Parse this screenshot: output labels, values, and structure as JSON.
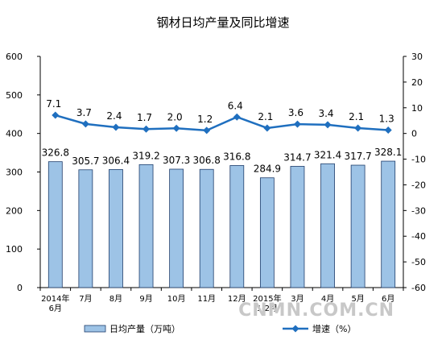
{
  "chart_data": {
    "type": "bar",
    "title": "钢材日均产量及同比增速",
    "categories": [
      "2014年|6月",
      "7月",
      "8月",
      "9月",
      "10月",
      "11月",
      "12月",
      "2015年|1-2月",
      "3月",
      "4月",
      "5月",
      "6月"
    ],
    "series": [
      {
        "name": "日均产量（万吨）",
        "type": "bar",
        "axis": "left",
        "color": "#9dc3e6",
        "values": [
          326.8,
          305.7,
          306.4,
          319.2,
          307.3,
          306.8,
          316.8,
          284.9,
          314.7,
          321.4,
          317.7,
          328.1
        ],
        "labels": [
          "326.8",
          "305.7",
          "306.4",
          "319.2",
          "307.3",
          "306.8",
          "316.8",
          "284.9",
          "314.7",
          "321.4",
          "317.7",
          "328.1"
        ]
      },
      {
        "name": "增速（%）",
        "type": "line",
        "axis": "right",
        "color": "#1f6fbf",
        "values": [
          7.1,
          3.7,
          2.4,
          1.7,
          2.0,
          1.2,
          6.4,
          2.1,
          3.6,
          3.4,
          2.1,
          1.3
        ],
        "labels": [
          "7.1",
          "3.7",
          "2.4",
          "1.7",
          "2.0",
          "1.2",
          "6.4",
          "2.1",
          "3.6",
          "3.4",
          "2.1",
          "1.3"
        ]
      }
    ],
    "y_left": {
      "ylim": [
        0,
        600
      ],
      "ticks": [
        "0",
        "100",
        "200",
        "300",
        "400",
        "500",
        "600"
      ]
    },
    "y_right": {
      "ylim": [
        -60,
        30
      ],
      "ticks": [
        "-60",
        "-50",
        "-40",
        "-30",
        "-20",
        "-10",
        "0",
        "10",
        "20",
        "30"
      ]
    },
    "grid": false,
    "legend": "bottom"
  },
  "watermark": "CNMN.COM.CN"
}
